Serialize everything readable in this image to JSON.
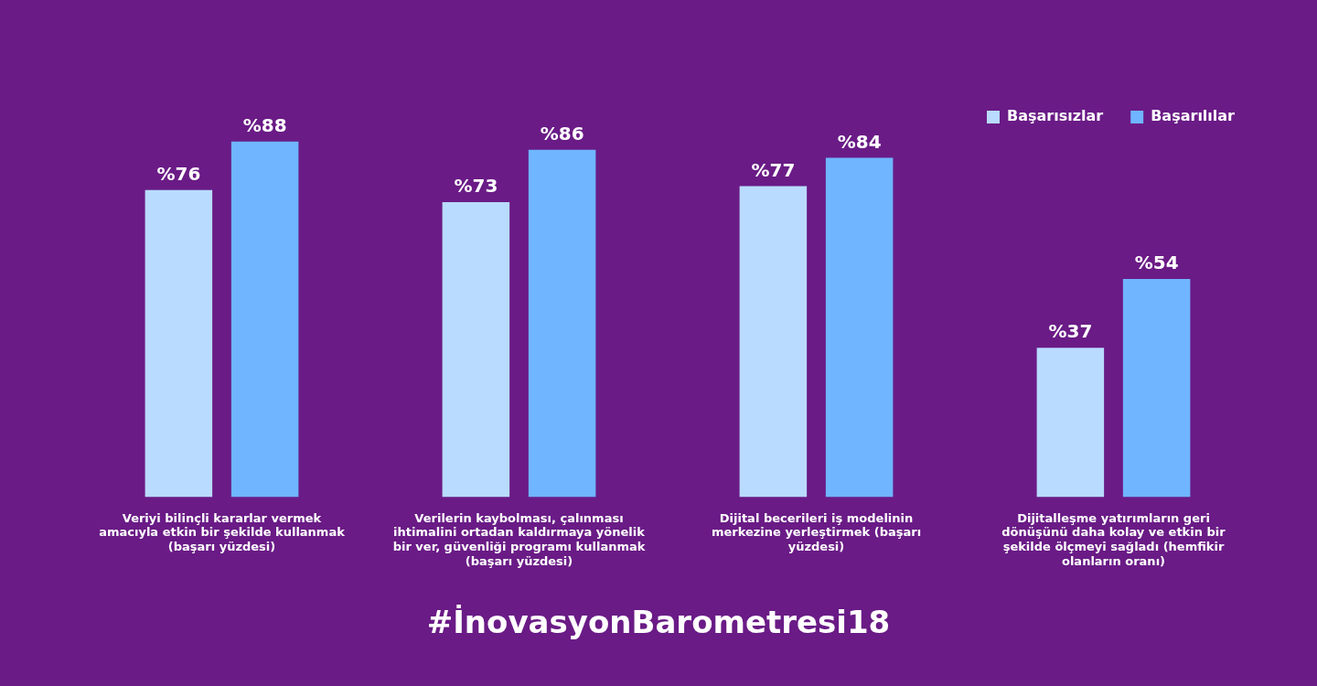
{
  "chart_data": {
    "type": "bar",
    "categories": [
      "Veriyi bilinçli kararlar vermek amacıyla etkin bir şekilde kullanmak (başarı yüzdesi)",
      "Verilerin kaybolması, çalınması ihtimalini ortadan kaldırmaya yönelik bir ver, güvenliği programı kullanmak (başarı yüzdesi)",
      "Dijital becerileri iş modelinin merkezine yerleştirmek (başarı yüzdesi)",
      "Dijitalleşme yatırımların geri dönüşünü daha kolay ve etkin bir şekilde ölçmeyi sağladı (hemfikir olanların oranı)"
    ],
    "series": [
      {
        "name": "Başarısızlar",
        "color": "#b9dbff",
        "values": [
          76,
          73,
          77,
          37
        ],
        "value_labels": [
          "%76",
          "%73",
          "%77",
          "%37"
        ]
      },
      {
        "name": "Başarılılar",
        "color": "#6fb5ff",
        "values": [
          88,
          86,
          84,
          54
        ],
        "value_labels": [
          "%88",
          "%86",
          "%84",
          "%54"
        ]
      }
    ],
    "legend": "top right",
    "grid": false,
    "annotations": [
      "#İnovasyonBarometresi18"
    ]
  }
}
